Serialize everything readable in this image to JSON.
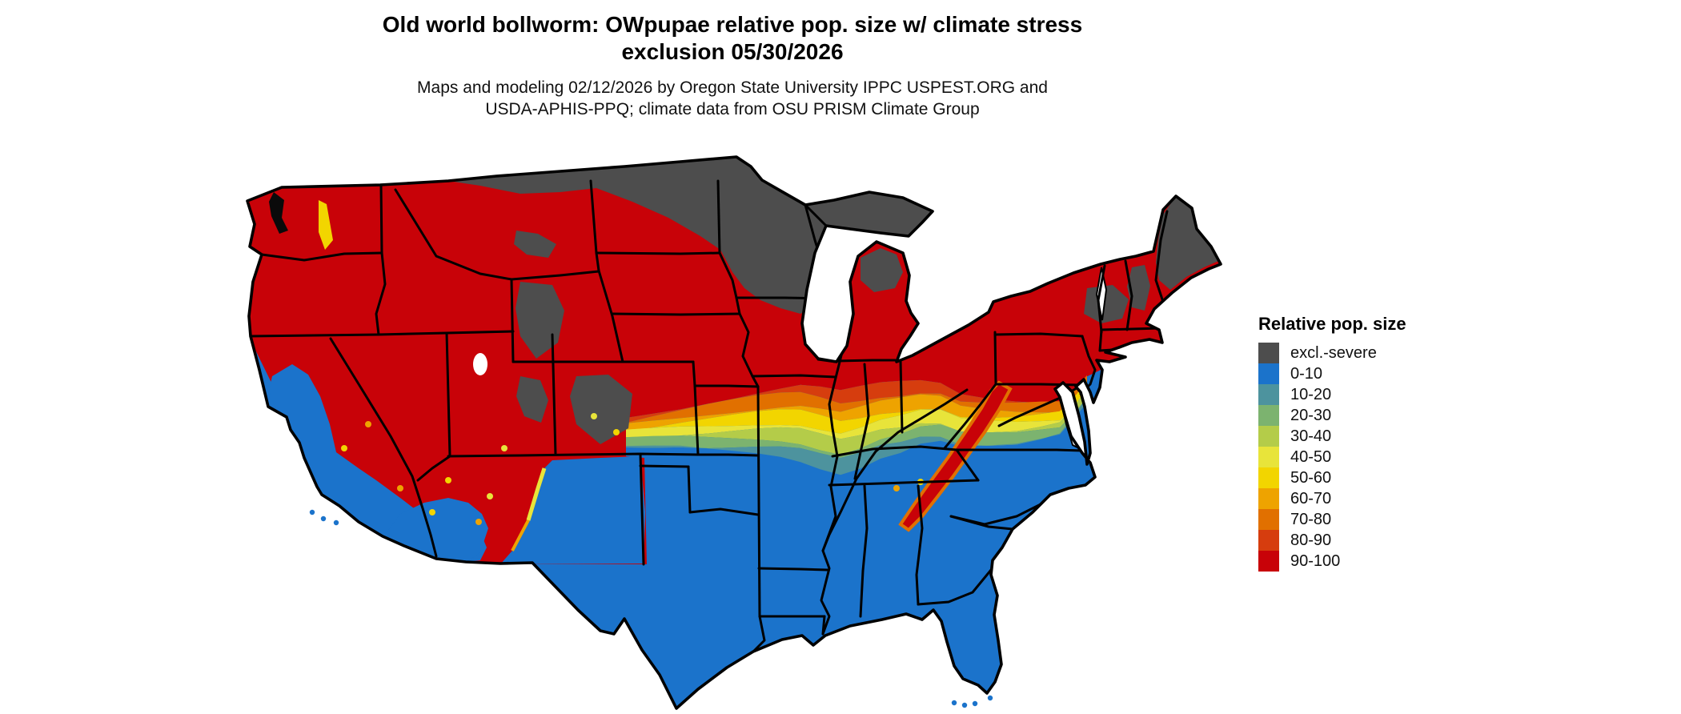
{
  "title": {
    "line1": "Old world bollworm: OWpupae relative pop. size w/ climate stress",
    "line2": "exclusion 05/30/2026"
  },
  "subtitle": {
    "line1": "Maps and modeling 02/12/2026 by Oregon State University IPPC USPEST.ORG and",
    "line2": "USDA-APHIS-PPQ; climate data from OSU PRISM Climate Group"
  },
  "legend": {
    "title": "Relative pop. size",
    "entries": [
      {
        "label": "excl.-severe",
        "color": "#4d4d4d"
      },
      {
        "label": "0-10",
        "color": "#1b73cb"
      },
      {
        "label": "10-20",
        "color": "#4d939e"
      },
      {
        "label": "20-30",
        "color": "#7cb36f"
      },
      {
        "label": "30-40",
        "color": "#b4cc49"
      },
      {
        "label": "40-50",
        "color": "#e8e43a"
      },
      {
        "label": "50-60",
        "color": "#f2d500"
      },
      {
        "label": "60-70",
        "color": "#eea300"
      },
      {
        "label": "70-80",
        "color": "#e17000"
      },
      {
        "label": "80-90",
        "color": "#d63d0e"
      },
      {
        "label": "90-100",
        "color": "#c80208"
      }
    ]
  },
  "map": {
    "description": "Contiguous US choropleth raster of relative population size",
    "water_color": "#ffffff",
    "state_border_color": "#000000",
    "exclusion_label": "excl.-severe",
    "north_value_label": "90-100",
    "south_value_label": "0-10",
    "transition_band_order_top_to_bottom": [
      "80-90",
      "70-80",
      "60-70",
      "50-60",
      "40-50",
      "30-40",
      "20-30",
      "10-20"
    ]
  }
}
